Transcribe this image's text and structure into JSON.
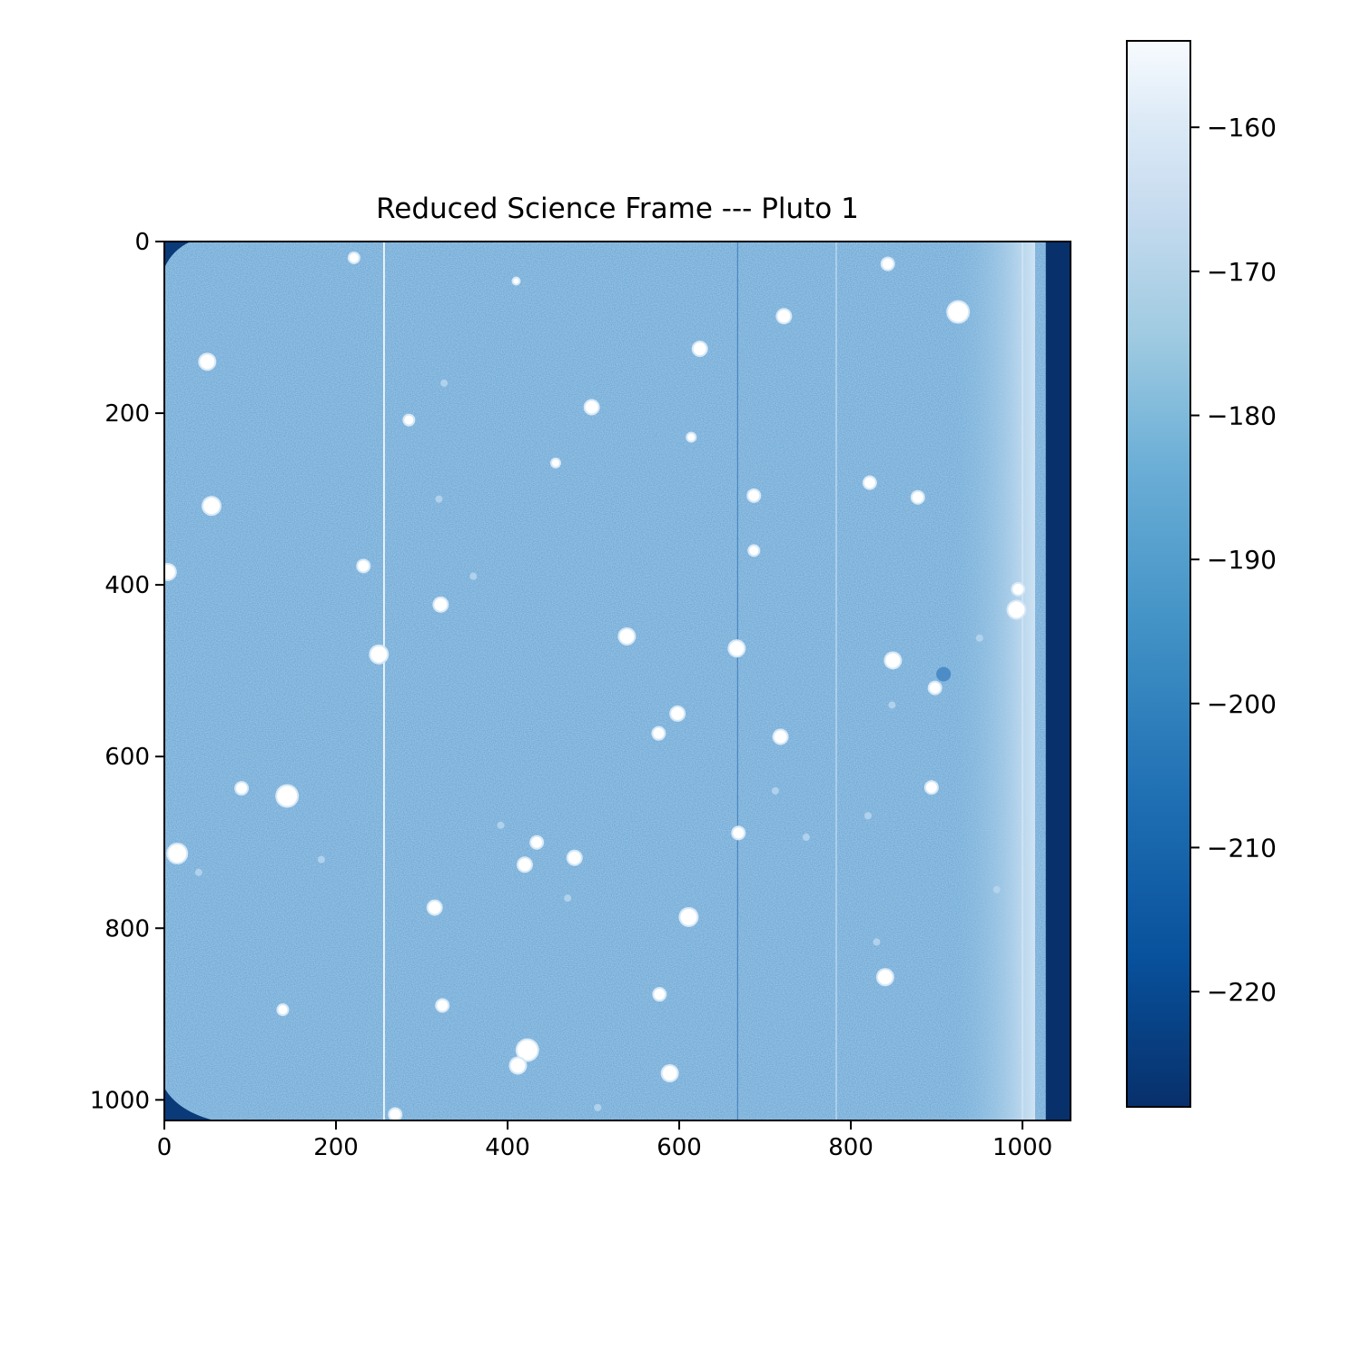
{
  "chart_data": {
    "type": "heatmap",
    "title": "Reduced Science Frame --- Pluto 1",
    "xlabel": "",
    "ylabel": "",
    "colormap": "Blues_r",
    "xlim": [
      0,
      1056
    ],
    "ylim": [
      1024,
      0
    ],
    "x_ticks": [
      0,
      200,
      400,
      600,
      800,
      1000
    ],
    "x_tick_labels": [
      "0",
      "200",
      "400",
      "600",
      "800",
      "1000"
    ],
    "y_ticks": [
      0,
      200,
      400,
      600,
      800,
      1000
    ],
    "y_tick_labels": [
      "0",
      "200",
      "400",
      "600",
      "800",
      "1000"
    ],
    "background_level": -188,
    "overscan_columns": [
      1024,
      1056
    ],
    "overscan_level": -228,
    "colorbar": {
      "range": [
        -228,
        -154
      ],
      "ticks": [
        -160,
        -170,
        -180,
        -190,
        -200,
        -210,
        -220
      ],
      "tick_labels": [
        "−160",
        "−170",
        "−180",
        "−190",
        "−200",
        "−210",
        "−220"
      ]
    },
    "bright_columns": [
      256,
      783,
      1000
    ],
    "dark_columns": [
      668
    ],
    "stars": [
      {
        "x": 221,
        "y": 19,
        "r": 5
      },
      {
        "x": 843,
        "y": 26,
        "r": 6
      },
      {
        "x": 410,
        "y": 46,
        "r": 3
      },
      {
        "x": 925,
        "y": 82,
        "r": 11
      },
      {
        "x": 722,
        "y": 87,
        "r": 7
      },
      {
        "x": 624,
        "y": 125,
        "r": 7
      },
      {
        "x": 50,
        "y": 140,
        "r": 8
      },
      {
        "x": 498,
        "y": 193,
        "r": 7
      },
      {
        "x": 285,
        "y": 208,
        "r": 5
      },
      {
        "x": 614,
        "y": 228,
        "r": 4
      },
      {
        "x": 456,
        "y": 258,
        "r": 4
      },
      {
        "x": 822,
        "y": 281,
        "r": 6
      },
      {
        "x": 687,
        "y": 296,
        "r": 6
      },
      {
        "x": 878,
        "y": 298,
        "r": 6
      },
      {
        "x": 55,
        "y": 308,
        "r": 9
      },
      {
        "x": 687,
        "y": 360,
        "r": 5
      },
      {
        "x": 232,
        "y": 378,
        "r": 6
      },
      {
        "x": 4,
        "y": 385,
        "r": 8
      },
      {
        "x": 995,
        "y": 405,
        "r": 6
      },
      {
        "x": 322,
        "y": 423,
        "r": 7
      },
      {
        "x": 993,
        "y": 429,
        "r": 9
      },
      {
        "x": 539,
        "y": 460,
        "r": 8
      },
      {
        "x": 667,
        "y": 474,
        "r": 8
      },
      {
        "x": 250,
        "y": 481,
        "r": 9
      },
      {
        "x": 849,
        "y": 488,
        "r": 8
      },
      {
        "x": 898,
        "y": 520,
        "r": 6
      },
      {
        "x": 598,
        "y": 550,
        "r": 7
      },
      {
        "x": 576,
        "y": 573,
        "r": 6
      },
      {
        "x": 718,
        "y": 577,
        "r": 7
      },
      {
        "x": 90,
        "y": 637,
        "r": 6
      },
      {
        "x": 894,
        "y": 636,
        "r": 6
      },
      {
        "x": 143,
        "y": 646,
        "r": 11
      },
      {
        "x": 669,
        "y": 689,
        "r": 6
      },
      {
        "x": 434,
        "y": 700,
        "r": 6
      },
      {
        "x": 15,
        "y": 713,
        "r": 10
      },
      {
        "x": 478,
        "y": 718,
        "r": 7
      },
      {
        "x": 420,
        "y": 726,
        "r": 7
      },
      {
        "x": 315,
        "y": 776,
        "r": 7
      },
      {
        "x": 611,
        "y": 787,
        "r": 9
      },
      {
        "x": 840,
        "y": 857,
        "r": 8
      },
      {
        "x": 577,
        "y": 877,
        "r": 6
      },
      {
        "x": 324,
        "y": 890,
        "r": 6
      },
      {
        "x": 138,
        "y": 895,
        "r": 5
      },
      {
        "x": 423,
        "y": 942,
        "r": 11
      },
      {
        "x": 412,
        "y": 960,
        "r": 8
      },
      {
        "x": 589,
        "y": 969,
        "r": 8
      },
      {
        "x": 269,
        "y": 1017,
        "r": 6
      }
    ],
    "faint_sources": [
      {
        "x": 326,
        "y": 165
      },
      {
        "x": 320,
        "y": 300
      },
      {
        "x": 360,
        "y": 390
      },
      {
        "x": 470,
        "y": 765
      },
      {
        "x": 392,
        "y": 680
      },
      {
        "x": 848,
        "y": 540
      },
      {
        "x": 950,
        "y": 462
      },
      {
        "x": 970,
        "y": 755
      },
      {
        "x": 820,
        "y": 669
      },
      {
        "x": 505,
        "y": 1009
      },
      {
        "x": 830,
        "y": 816
      },
      {
        "x": 40,
        "y": 735
      },
      {
        "x": 183,
        "y": 720
      },
      {
        "x": 712,
        "y": 640
      },
      {
        "x": 748,
        "y": 694
      }
    ],
    "dark_spots": [
      {
        "x": 908,
        "y": 504,
        "r": 8
      }
    ]
  }
}
